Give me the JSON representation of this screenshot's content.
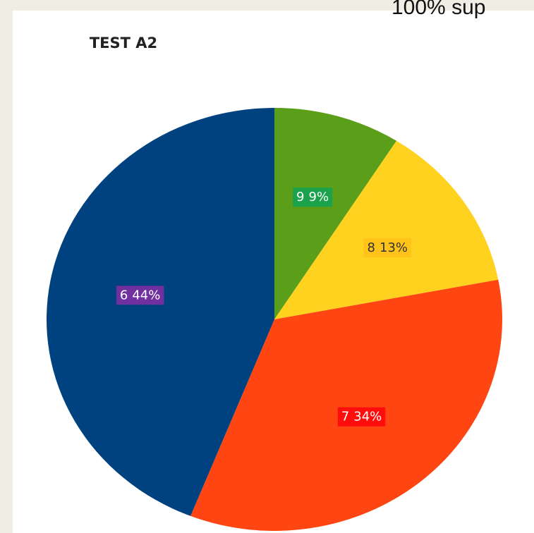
{
  "chart_data": {
    "type": "pie",
    "title": "TEST A2",
    "annotation": "100% sup",
    "categories": [
      "9",
      "8",
      "7",
      "6"
    ],
    "values": [
      9,
      13,
      34,
      44
    ],
    "value_labels": [
      "9%",
      "13%",
      "34%",
      "44%"
    ],
    "colors": [
      "#5a9e1a",
      "#ffd21f",
      "#ff4511",
      "#00427f"
    ],
    "label_box_colors": [
      "#1ca24c",
      "#ffc31a",
      "#ff0d0d",
      "#7030a0"
    ],
    "label_text_colors": [
      "#ffffff",
      "#333333",
      "#ffffff",
      "#ffffff"
    ]
  }
}
